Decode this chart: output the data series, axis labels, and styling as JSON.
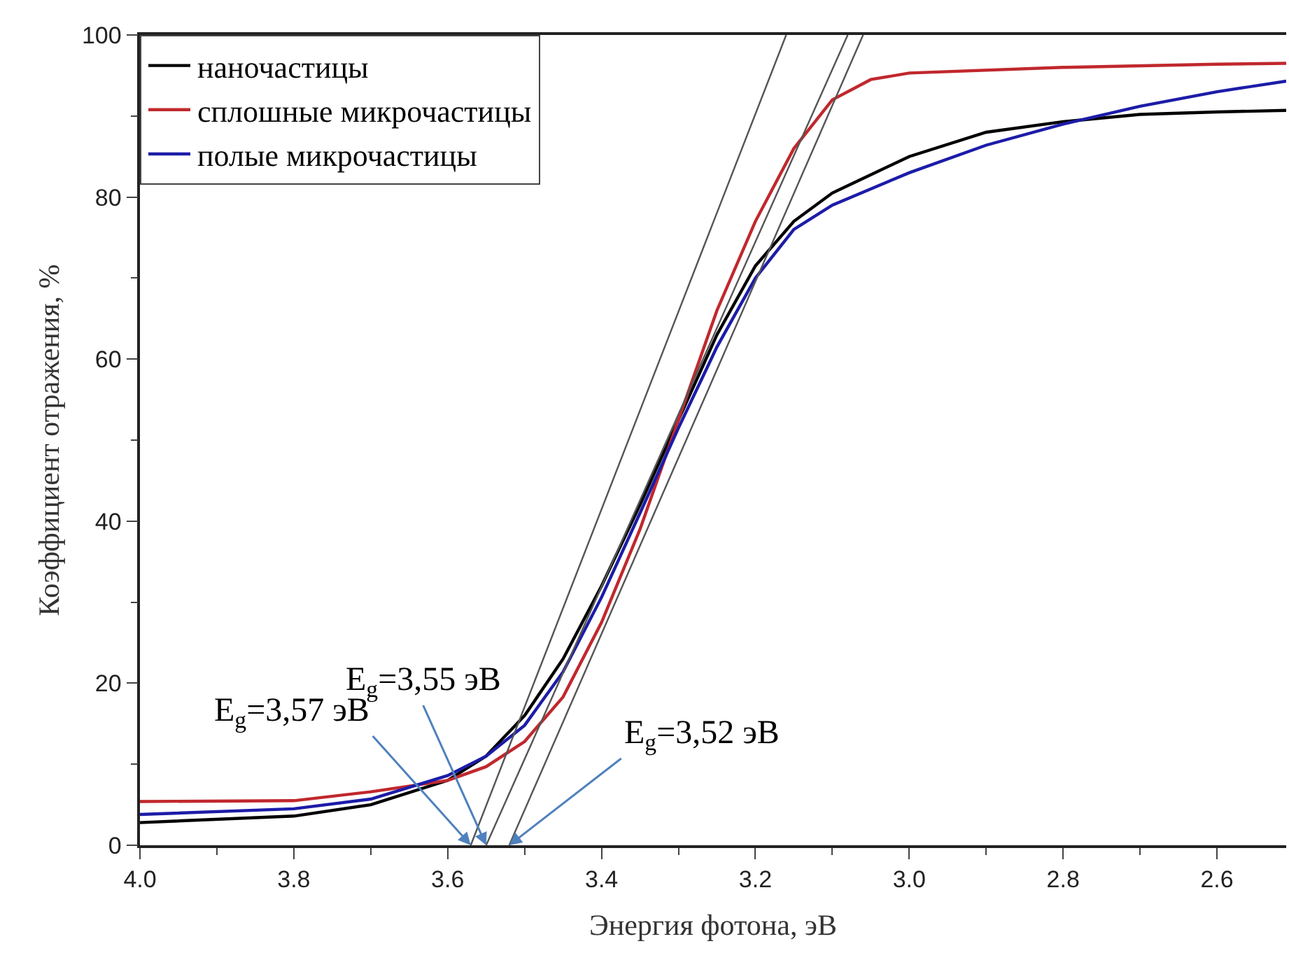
{
  "chart_data": {
    "type": "line",
    "xlabel": "Энергия фотона, эВ",
    "ylabel": "Коэффициент отражения, %",
    "xlim": [
      4.0,
      2.51
    ],
    "xticks": [
      {
        "value": 4,
        "label": "4.0"
      },
      3.8,
      3.6,
      3.4,
      3.2,
      {
        "value": 3,
        "label": "3.0"
      },
      2.8,
      2.6
    ],
    "ylim": [
      0,
      100
    ],
    "yticks": [
      0,
      20,
      40,
      60,
      80,
      100
    ],
    "legend": "top left",
    "marker": "none",
    "line_style": "solid",
    "series": [
      {
        "name": "наночастицы",
        "color": "#000000",
        "x": [
          4.0,
          3.8,
          3.7,
          3.6,
          3.55,
          3.5,
          3.45,
          3.4,
          3.35,
          3.3,
          3.25,
          3.2,
          3.15,
          3.1,
          3.0,
          2.9,
          2.8,
          2.7,
          2.6,
          2.51
        ],
        "values": [
          2.8,
          3.6,
          5,
          8,
          11,
          16,
          23,
          32,
          42,
          52.5,
          63,
          71.5,
          77,
          80.5,
          85,
          88,
          89.3,
          90.2,
          90.5,
          90.7
        ]
      },
      {
        "name": "сплошные микрочастицы",
        "color": "#c0282d",
        "x": [
          4.0,
          3.8,
          3.7,
          3.6,
          3.55,
          3.5,
          3.45,
          3.4,
          3.35,
          3.3,
          3.25,
          3.2,
          3.15,
          3.1,
          3.05,
          3.0,
          2.8,
          2.6,
          2.51
        ],
        "values": [
          5.4,
          5.5,
          6.6,
          8,
          9.7,
          12.8,
          18.3,
          27.5,
          39,
          52.5,
          66,
          77,
          86,
          92,
          94.5,
          95.3,
          96,
          96.4,
          96.5
        ]
      },
      {
        "name": "полые микрочастицы",
        "color": "#1c1ca8",
        "x": [
          4.0,
          3.8,
          3.7,
          3.6,
          3.55,
          3.5,
          3.45,
          3.4,
          3.35,
          3.3,
          3.25,
          3.2,
          3.15,
          3.1,
          3.0,
          2.9,
          2.8,
          2.7,
          2.6,
          2.51
        ],
        "values": [
          3.8,
          4.5,
          5.7,
          8.6,
          11,
          14.8,
          21.4,
          30.6,
          41,
          51.5,
          61.5,
          70,
          76,
          79,
          83,
          86.4,
          89,
          91.2,
          93,
          94.3
        ]
      },
      {
        "type": "line",
        "color": "#555555",
        "x": [
          3.57,
          3.16
        ],
        "values": [
          0,
          100
        ]
      },
      {
        "type": "line",
        "color": "#555555",
        "x": [
          3.55,
          3.08
        ],
        "values": [
          0,
          100
        ]
      },
      {
        "type": "line",
        "color": "#555555",
        "x": [
          3.52,
          3.06
        ],
        "values": [
          0,
          100
        ]
      }
    ],
    "annotations": [
      {
        "text": "E$_{g}$=3,57 эВ",
        "x": 3.57,
        "y": 0
      },
      {
        "text": "E$_{g}$=3,55 эВ",
        "x": 3.55,
        "y": 0
      },
      {
        "text": "E$_{g}$=3,52 эВ",
        "x": 3.52,
        "y": 0
      }
    ]
  }
}
